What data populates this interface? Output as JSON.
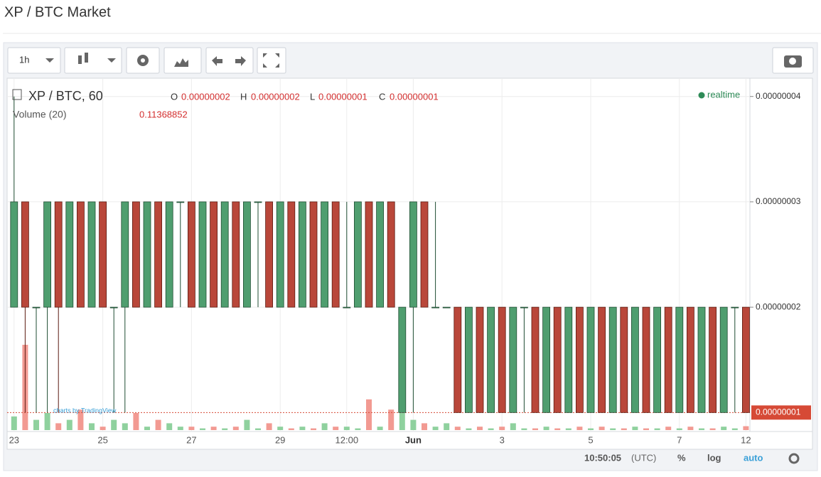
{
  "header": {
    "title": "XP / BTC Market"
  },
  "toolbar": {
    "interval": "1h"
  },
  "chart_data": {
    "type": "candlestick",
    "title": "XP / BTC, 60",
    "status": "realtime",
    "watermark": "charts by TradingView",
    "legend": {
      "names": [
        "O",
        "H",
        "L",
        "C"
      ],
      "value_labels": [
        "0.00000002",
        "0.00000002",
        "0.00000001",
        "0.00000001"
      ]
    },
    "categories": [
      "23",
      null,
      null,
      null,
      null,
      null,
      null,
      null,
      "25",
      null,
      null,
      null,
      null,
      null,
      null,
      null,
      "27",
      null,
      null,
      null,
      null,
      null,
      null,
      null,
      "29",
      null,
      null,
      null,
      null,
      null,
      "12:00",
      null,
      null,
      null,
      null,
      null,
      "Jun",
      null,
      null,
      null,
      null,
      null,
      null,
      null,
      "3",
      null,
      null,
      null,
      null,
      null,
      null,
      null,
      "5",
      null,
      null,
      null,
      null,
      null,
      null,
      null,
      "7",
      null,
      null,
      null,
      null,
      null,
      "12"
    ],
    "open": [
      2e-08,
      3e-08,
      2e-08,
      2e-08,
      3e-08,
      2e-08,
      3e-08,
      2e-08,
      3e-08,
      2e-08,
      2e-08,
      3e-08,
      2e-08,
      3e-08,
      2e-08,
      3e-08,
      3e-08,
      2e-08,
      3e-08,
      2e-08,
      3e-08,
      2e-08,
      3e-08,
      3e-08,
      2e-08,
      3e-08,
      2e-08,
      3e-08,
      2e-08,
      3e-08,
      2e-08,
      2e-08,
      3e-08,
      2e-08,
      3e-08,
      1e-08,
      2e-08,
      3e-08,
      2e-08,
      2e-08,
      2e-08,
      1e-08,
      2e-08,
      1e-08,
      2e-08,
      1e-08,
      2e-08,
      2e-08,
      1e-08,
      2e-08,
      1e-08,
      2e-08,
      1e-08,
      2e-08,
      1e-08,
      2e-08,
      1e-08,
      2e-08,
      1e-08,
      2e-08,
      1e-08,
      2e-08,
      1e-08,
      2e-08,
      1e-08,
      2e-08,
      2e-08
    ],
    "high": [
      4e-08,
      3e-08,
      2e-08,
      3e-08,
      3e-08,
      3e-08,
      3e-08,
      3e-08,
      3e-08,
      2e-08,
      3e-08,
      3e-08,
      3e-08,
      3e-08,
      3e-08,
      3e-08,
      3e-08,
      3e-08,
      3e-08,
      3e-08,
      3e-08,
      3e-08,
      3e-08,
      3e-08,
      3e-08,
      3e-08,
      3e-08,
      3e-08,
      3e-08,
      3e-08,
      3e-08,
      3e-08,
      3e-08,
      3e-08,
      3e-08,
      2e-08,
      3e-08,
      3e-08,
      3e-08,
      2e-08,
      2e-08,
      2e-08,
      2e-08,
      2e-08,
      2e-08,
      2e-08,
      2e-08,
      2e-08,
      2e-08,
      2e-08,
      2e-08,
      2e-08,
      2e-08,
      2e-08,
      2e-08,
      2e-08,
      2e-08,
      2e-08,
      2e-08,
      2e-08,
      2e-08,
      2e-08,
      2e-08,
      2e-08,
      2e-08,
      2e-08,
      2e-08
    ],
    "low": [
      2e-08,
      1e-08,
      1e-08,
      1e-08,
      1e-08,
      2e-08,
      2e-08,
      2e-08,
      2e-08,
      1e-08,
      1e-08,
      2e-08,
      2e-08,
      2e-08,
      2e-08,
      2e-08,
      2e-08,
      2e-08,
      2e-08,
      2e-08,
      2e-08,
      2e-08,
      2e-08,
      2e-08,
      2e-08,
      2e-08,
      2e-08,
      2e-08,
      2e-08,
      2e-08,
      2e-08,
      2e-08,
      2e-08,
      2e-08,
      2e-08,
      1e-08,
      1e-08,
      2e-08,
      2e-08,
      2e-08,
      1e-08,
      1e-08,
      1e-08,
      1e-08,
      1e-08,
      1e-08,
      1e-08,
      1e-08,
      1e-08,
      1e-08,
      1e-08,
      1e-08,
      1e-08,
      1e-08,
      1e-08,
      1e-08,
      1e-08,
      1e-08,
      1e-08,
      1e-08,
      1e-08,
      1e-08,
      1e-08,
      1e-08,
      1e-08,
      1e-08,
      1e-08
    ],
    "close": [
      3e-08,
      2e-08,
      2e-08,
      3e-08,
      2e-08,
      3e-08,
      2e-08,
      3e-08,
      2e-08,
      2e-08,
      3e-08,
      2e-08,
      3e-08,
      2e-08,
      3e-08,
      3e-08,
      2e-08,
      3e-08,
      2e-08,
      3e-08,
      2e-08,
      3e-08,
      3e-08,
      2e-08,
      3e-08,
      2e-08,
      3e-08,
      2e-08,
      3e-08,
      2e-08,
      2e-08,
      3e-08,
      2e-08,
      3e-08,
      2e-08,
      2e-08,
      3e-08,
      2e-08,
      2e-08,
      2e-08,
      1e-08,
      2e-08,
      1e-08,
      2e-08,
      1e-08,
      2e-08,
      2e-08,
      1e-08,
      2e-08,
      1e-08,
      2e-08,
      1e-08,
      2e-08,
      1e-08,
      2e-08,
      1e-08,
      2e-08,
      1e-08,
      2e-08,
      1e-08,
      2e-08,
      1e-08,
      2e-08,
      1e-08,
      2e-08,
      2e-08,
      1e-08
    ],
    "up_color": "#4f9e6f",
    "up_border": "#1f4d33",
    "down_color": "#b9473a",
    "down_border": "#5c1a10",
    "volume": {
      "name": "Volume (20)",
      "up_color": "#8fd19e",
      "down_color": "#f29a92",
      "values": [
        0.4,
        2.5,
        0.3,
        0.5,
        0.2,
        0.3,
        0.6,
        0.2,
        0.1,
        0.3,
        0.2,
        0.5,
        0.1,
        0.3,
        0.2,
        0.1,
        0.1,
        0.05,
        0.1,
        0.05,
        0.1,
        0.3,
        0.05,
        0.2,
        0.1,
        0.05,
        0.1,
        0.05,
        0.2,
        0.1,
        0.1,
        0.05,
        0.9,
        0.1,
        0.6,
        0.5,
        0.3,
        0.2,
        0.1,
        0.2,
        0.1,
        0.05,
        0.1,
        0.05,
        0.1,
        0.2,
        0.05,
        0.05,
        0.1,
        0.05,
        0.05,
        0.1,
        0.05,
        0.1,
        0.05,
        0.05,
        0.1,
        0.05,
        0.05,
        0.1,
        0.05,
        0.1,
        0.05,
        0.05,
        0.1,
        0.05,
        0.11368852
      ]
    },
    "ylim": [
      8.2e-09,
      4.16e-08
    ],
    "yticks": [
      {
        "value": 4e-08,
        "label": "0.00000004"
      },
      {
        "value": 3e-08,
        "label": "0.00000003"
      },
      {
        "value": 2e-08,
        "label": "0.00000002"
      }
    ],
    "last_price": {
      "value": 1e-08,
      "label": "0.00000001",
      "color": "#d64a36"
    },
    "grid": true
  },
  "footer": {
    "time": "10:50:05",
    "timezone": "(UTC)",
    "percent": "%",
    "log": "log",
    "auto": "auto"
  }
}
